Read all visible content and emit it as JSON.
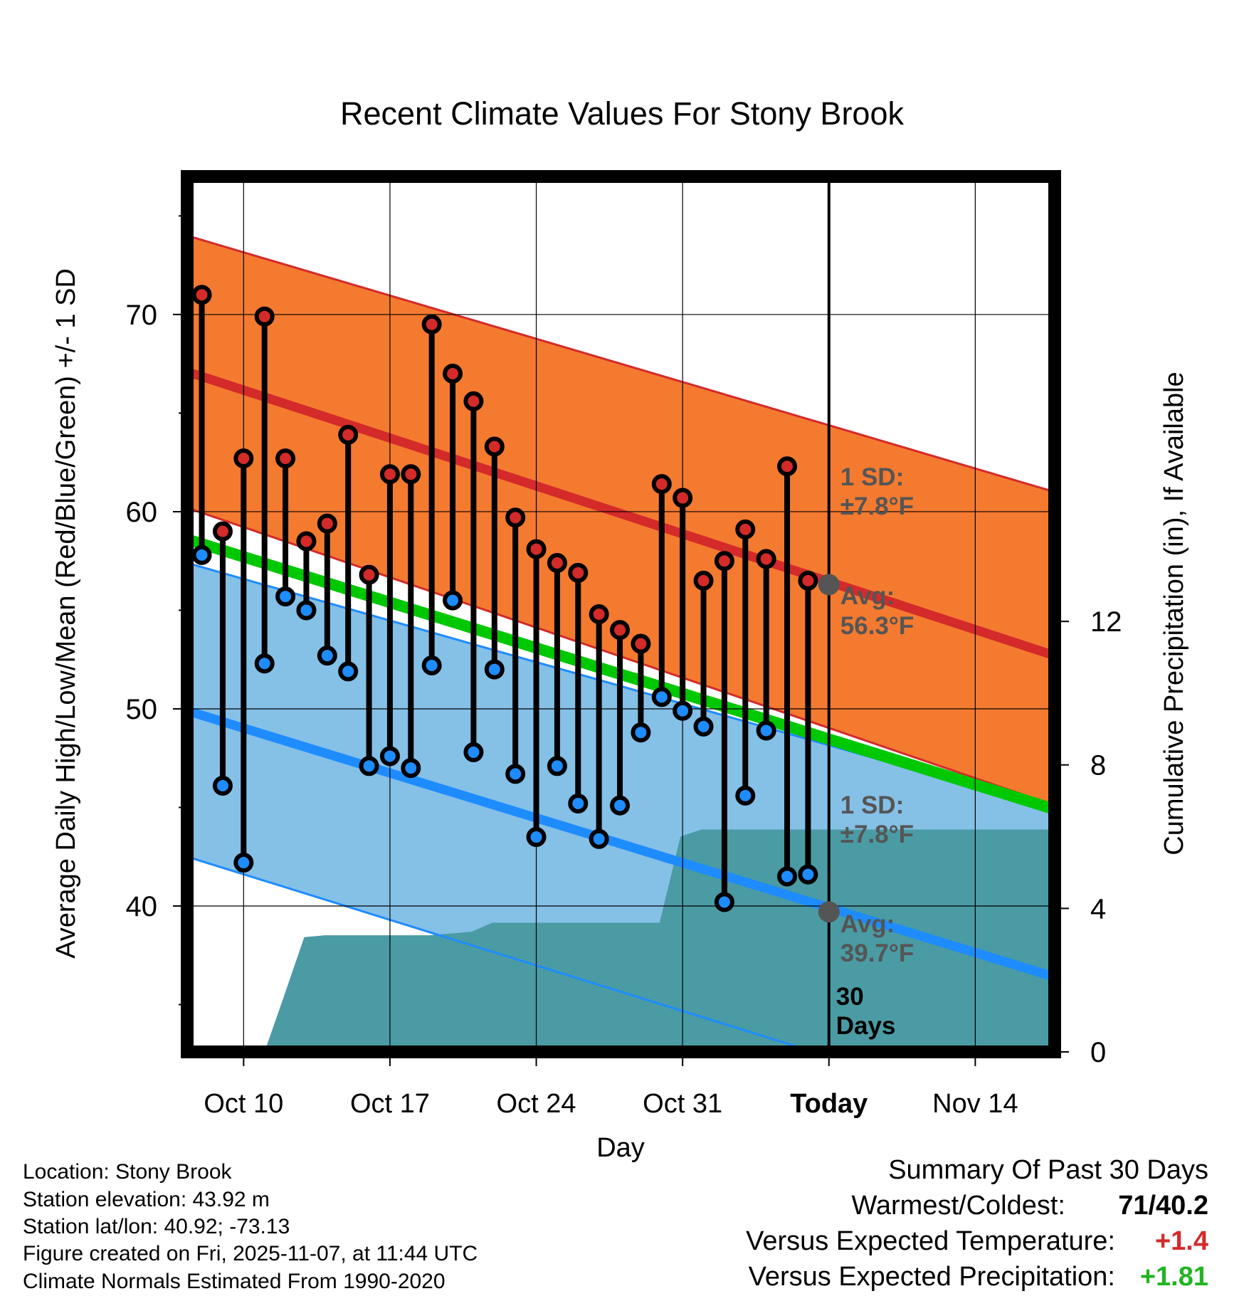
{
  "chart_data": {
    "type": "line",
    "title": "Recent Climate Values For Stony Brook",
    "xlabel": "Day",
    "ylabel": "Average Daily High/Low/Mean (Red/Blue/Green) +/- 1 SD",
    "ylabel2": "Cumulative Precipitation (in), If Available",
    "x_domain": [
      7.3,
      48.8
    ],
    "ylim": [
      32.6,
      77
    ],
    "ylim2": [
      0,
      24.4
    ],
    "y_ticks": [
      40,
      50,
      60,
      70
    ],
    "y_minor_ticks": [
      35,
      45,
      55,
      65,
      75
    ],
    "y2_ticks": [
      0,
      4,
      8,
      12
    ],
    "x_ticks": [
      {
        "x": 10,
        "label": "Oct 10"
      },
      {
        "x": 17,
        "label": "Oct 17"
      },
      {
        "x": 24,
        "label": "Oct 24"
      },
      {
        "x": 31,
        "label": "Oct 31"
      },
      {
        "x": 38,
        "label": "Today"
      },
      {
        "x": 45,
        "label": "Nov 14"
      }
    ],
    "today_x": 38,
    "normals": {
      "high_mean": [
        67.1,
        52.7
      ],
      "high_sd_upper": [
        74.0,
        61.0
      ],
      "high_sd_lower": [
        60.2,
        45.1
      ],
      "mean": [
        58.6,
        44.9
      ],
      "low_mean": [
        49.9,
        36.4
      ],
      "low_sd_upper": [
        57.4,
        44.9
      ],
      "low_sd_lower": [
        42.5,
        28.8
      ]
    },
    "daily": {
      "x": [
        8,
        9,
        10,
        11,
        12,
        13,
        14,
        15,
        16,
        17,
        18,
        19,
        20,
        21,
        22,
        23,
        24,
        25,
        26,
        27,
        28,
        29,
        30,
        31,
        32,
        33,
        34,
        35,
        36,
        37
      ],
      "high": [
        71.0,
        59.0,
        62.7,
        69.9,
        62.7,
        58.5,
        59.4,
        63.9,
        56.8,
        61.9,
        61.9,
        69.5,
        67.0,
        65.6,
        63.3,
        59.7,
        58.1,
        57.4,
        56.9,
        54.8,
        54.0,
        53.3,
        61.4,
        60.7,
        56.5,
        57.5,
        59.1,
        57.6,
        62.3,
        56.5
      ],
      "low": [
        57.8,
        46.1,
        42.2,
        52.3,
        55.7,
        55.0,
        52.7,
        51.9,
        47.1,
        47.6,
        47.0,
        52.2,
        55.5,
        47.8,
        52.0,
        46.7,
        43.5,
        47.1,
        45.2,
        43.4,
        45.1,
        48.8,
        50.6,
        49.9,
        49.1,
        40.2,
        45.6,
        48.9,
        41.5,
        41.6
      ]
    },
    "precipitation": {
      "x": [
        11.0,
        11.9,
        12.9,
        13.9,
        18.9,
        20.9,
        21.9,
        24.4,
        29.9,
        30.9,
        31.9,
        48.8
      ],
      "values": [
        0,
        1.5,
        3.2,
        3.25,
        3.25,
        3.35,
        3.6,
        3.6,
        3.6,
        6.0,
        6.2,
        6.2
      ]
    },
    "annotations": {
      "high_sd": "1 SD:",
      "high_sd_value": "±7.8°F",
      "high_avg": "Avg:",
      "high_avg_value": "56.3°F",
      "high_avg_y": 56.3,
      "low_sd": "1 SD:",
      "low_sd_value": "±7.8°F",
      "low_avg": "Avg:",
      "low_avg_value": "39.7°F",
      "low_avg_y": 39.7,
      "window_line1": "30",
      "window_line2": "Days"
    },
    "colors": {
      "high_band": "#f47a30",
      "high_line": "#d42a2a",
      "mean_line": "#00c800",
      "low_band": "#85c0e7",
      "low_line": "#1e8cff",
      "precip": "#4a9ba4",
      "high_dot": "#d42a2a",
      "low_dot": "#1e8cff",
      "annotation": "#555555"
    }
  },
  "footer": {
    "location": "Location: Stony Brook",
    "elevation": "Station elevation: 43.92 m",
    "latlon": "Station lat/lon: 40.92; -73.13",
    "created": "Figure created on Fri, 2025-11-07, at 11:44 UTC",
    "normals": "Climate Normals Estimated From 1990-2020"
  },
  "summary": {
    "title": "Summary Of Past 30 Days",
    "warmest_label": "Warmest/Coldest:",
    "warmest_value": "71/40.2",
    "temp_label": "Versus Expected Temperature:",
    "temp_value": "+1.4",
    "temp_color": "#d42a2a",
    "precip_label": "Versus Expected Precipitation:",
    "precip_value": "+1.81",
    "precip_color": "#22b422"
  }
}
